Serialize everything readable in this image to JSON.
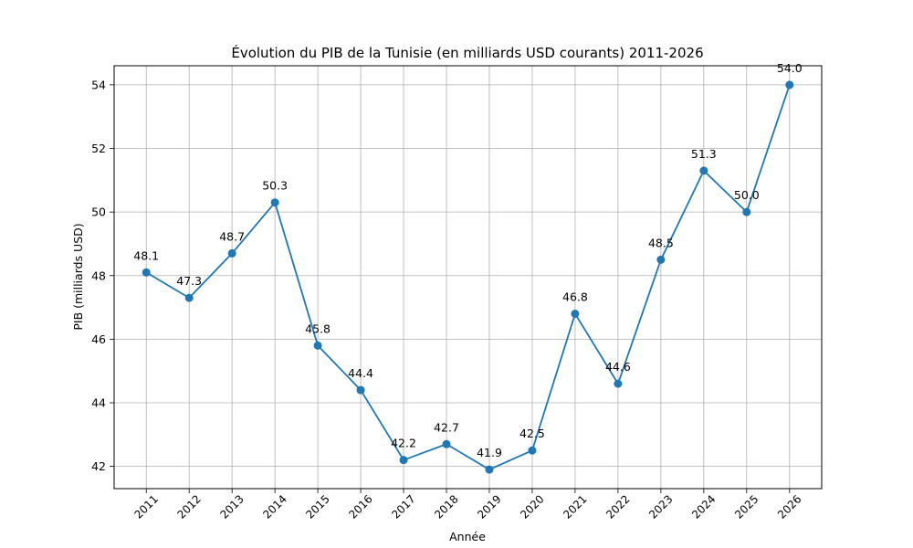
{
  "chart_data": {
    "type": "line",
    "title": "Évolution du PIB de la Tunisie (en milliards USD courants) 2011-2026",
    "xlabel": "Année",
    "ylabel": "PIB (milliards USD)",
    "x": [
      2011,
      2012,
      2013,
      2014,
      2015,
      2016,
      2017,
      2018,
      2019,
      2020,
      2021,
      2022,
      2023,
      2024,
      2025,
      2026
    ],
    "x_tick_labels": [
      "2011",
      "2012",
      "2013",
      "2014",
      "2015",
      "2016",
      "2017",
      "2018",
      "2019",
      "2020",
      "2021",
      "2022",
      "2023",
      "2024",
      "2025",
      "2026"
    ],
    "values": [
      48.1,
      47.3,
      48.7,
      50.3,
      45.8,
      44.4,
      42.2,
      42.7,
      41.9,
      42.5,
      46.8,
      44.6,
      48.5,
      51.3,
      50.0,
      54.0
    ],
    "data_labels": [
      "48.1",
      "47.3",
      "48.7",
      "50.3",
      "45.8",
      "44.4",
      "42.2",
      "42.7",
      "41.9",
      "42.5",
      "46.8",
      "44.6",
      "48.5",
      "51.3",
      "50.0",
      "54.0"
    ],
    "y_ticks": [
      42,
      44,
      46,
      48,
      50,
      52,
      54
    ],
    "y_tick_labels": [
      "42",
      "44",
      "46",
      "48",
      "50",
      "52",
      "54"
    ],
    "xlim": [
      2010.25,
      2026.75
    ],
    "ylim": [
      41.3,
      54.6
    ],
    "grid": true,
    "marker": "circle",
    "line_color": "#1f77b4"
  }
}
